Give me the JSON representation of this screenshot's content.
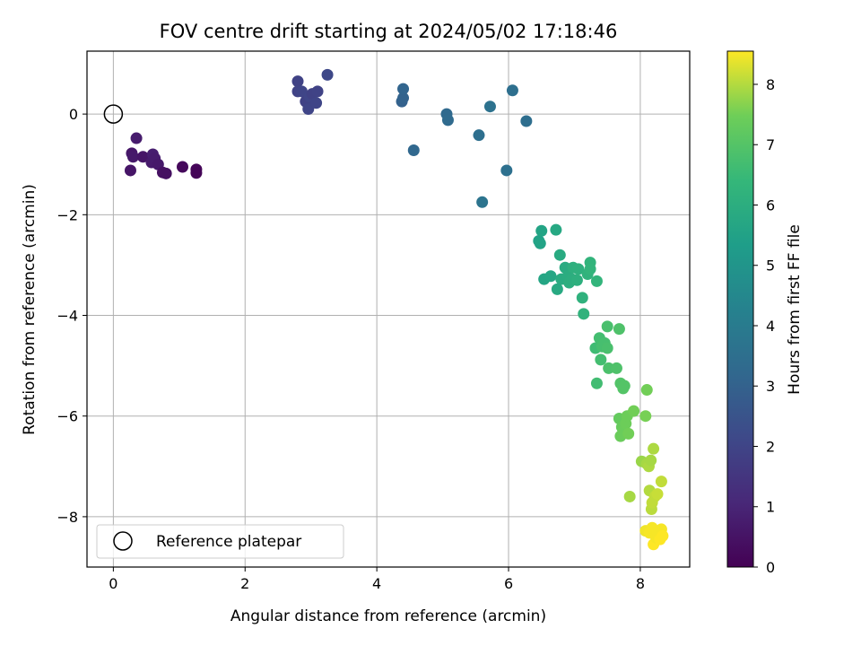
{
  "chart_data": {
    "type": "scatter",
    "title": "FOV centre drift starting at 2024/05/02 17:18:46",
    "xlabel": "Angular distance from reference (arcmin)",
    "ylabel": "Rotation from reference (arcmin)",
    "xlim": [
      -0.4,
      8.75
    ],
    "ylim": [
      -9.0,
      1.25
    ],
    "xticks": [
      0,
      2,
      4,
      6,
      8
    ],
    "yticks": [
      0,
      -2,
      -4,
      -6,
      -8
    ],
    "grid": true,
    "colormap": "viridis",
    "colorbar": {
      "label": "Hours from first FF file",
      "range": [
        0,
        8.55
      ],
      "ticks": [
        0,
        1,
        2,
        3,
        4,
        5,
        6,
        7,
        8
      ]
    },
    "legend": {
      "position": "lower-left",
      "entries": [
        "Reference platepar"
      ]
    },
    "reference_point": {
      "x": 0,
      "y": 0,
      "label": "Reference platepar"
    },
    "points": [
      {
        "x": 0.26,
        "y": -1.12,
        "c": 0.55
      },
      {
        "x": 0.28,
        "y": -0.78,
        "c": 0.6
      },
      {
        "x": 0.3,
        "y": -0.85,
        "c": 0.65
      },
      {
        "x": 0.35,
        "y": -0.48,
        "c": 0.75
      },
      {
        "x": 0.45,
        "y": -0.85,
        "c": 0.55
      },
      {
        "x": 0.58,
        "y": -0.96,
        "c": 0.7
      },
      {
        "x": 0.6,
        "y": -0.8,
        "c": 0.8
      },
      {
        "x": 0.63,
        "y": -0.88,
        "c": 0.75
      },
      {
        "x": 0.68,
        "y": -1.0,
        "c": 0.65
      },
      {
        "x": 0.75,
        "y": -1.16,
        "c": 0.45
      },
      {
        "x": 0.8,
        "y": -1.18,
        "c": 0.4
      },
      {
        "x": 1.05,
        "y": -1.05,
        "c": 0.2
      },
      {
        "x": 1.26,
        "y": -1.1,
        "c": 0.15
      },
      {
        "x": 1.26,
        "y": -1.17,
        "c": 0.1
      },
      {
        "x": 2.8,
        "y": 0.65,
        "c": 1.9
      },
      {
        "x": 2.8,
        "y": 0.45,
        "c": 1.95
      },
      {
        "x": 2.86,
        "y": 0.45,
        "c": 2.0
      },
      {
        "x": 2.92,
        "y": 0.25,
        "c": 1.9
      },
      {
        "x": 2.96,
        "y": 0.1,
        "c": 2.0
      },
      {
        "x": 2.98,
        "y": 0.35,
        "c": 2.05
      },
      {
        "x": 3.02,
        "y": 0.4,
        "c": 1.9
      },
      {
        "x": 3.08,
        "y": 0.22,
        "c": 2.0
      },
      {
        "x": 3.1,
        "y": 0.45,
        "c": 1.95
      },
      {
        "x": 3.25,
        "y": 0.78,
        "c": 2.1
      },
      {
        "x": 4.38,
        "y": 0.25,
        "c": 3.0
      },
      {
        "x": 4.4,
        "y": 0.32,
        "c": 3.05
      },
      {
        "x": 4.4,
        "y": 0.5,
        "c": 3.1
      },
      {
        "x": 4.56,
        "y": -0.72,
        "c": 3.2
      },
      {
        "x": 5.06,
        "y": 0.0,
        "c": 3.3
      },
      {
        "x": 5.08,
        "y": -0.12,
        "c": 3.35
      },
      {
        "x": 5.55,
        "y": -0.42,
        "c": 3.5
      },
      {
        "x": 5.6,
        "y": -1.75,
        "c": 3.7
      },
      {
        "x": 5.72,
        "y": 0.15,
        "c": 3.6
      },
      {
        "x": 5.97,
        "y": -1.12,
        "c": 3.55
      },
      {
        "x": 6.06,
        "y": 0.47,
        "c": 3.5
      },
      {
        "x": 6.27,
        "y": -0.14,
        "c": 3.45
      },
      {
        "x": 6.46,
        "y": -2.52,
        "c": 5.5
      },
      {
        "x": 6.48,
        "y": -2.57,
        "c": 5.55
      },
      {
        "x": 6.5,
        "y": -2.32,
        "c": 5.6
      },
      {
        "x": 6.54,
        "y": -3.28,
        "c": 5.65
      },
      {
        "x": 6.64,
        "y": -3.22,
        "c": 5.7
      },
      {
        "x": 6.72,
        "y": -2.3,
        "c": 5.75
      },
      {
        "x": 6.74,
        "y": -3.48,
        "c": 5.8
      },
      {
        "x": 6.78,
        "y": -2.8,
        "c": 5.85
      },
      {
        "x": 6.8,
        "y": -3.28,
        "c": 5.9
      },
      {
        "x": 6.86,
        "y": -3.05,
        "c": 5.9
      },
      {
        "x": 6.9,
        "y": -3.22,
        "c": 5.95
      },
      {
        "x": 6.92,
        "y": -3.35,
        "c": 6.0
      },
      {
        "x": 6.96,
        "y": -3.28,
        "c": 6.0
      },
      {
        "x": 6.98,
        "y": -3.05,
        "c": 6.05
      },
      {
        "x": 7.04,
        "y": -3.3,
        "c": 6.05
      },
      {
        "x": 7.06,
        "y": -3.08,
        "c": 6.1
      },
      {
        "x": 7.12,
        "y": -3.65,
        "c": 6.15
      },
      {
        "x": 7.14,
        "y": -3.97,
        "c": 6.2
      },
      {
        "x": 7.2,
        "y": -3.18,
        "c": 6.2
      },
      {
        "x": 7.24,
        "y": -2.95,
        "c": 6.25
      },
      {
        "x": 7.24,
        "y": -3.08,
        "c": 6.3
      },
      {
        "x": 7.34,
        "y": -3.32,
        "c": 6.3
      },
      {
        "x": 7.32,
        "y": -4.65,
        "c": 6.6
      },
      {
        "x": 7.34,
        "y": -5.35,
        "c": 6.65
      },
      {
        "x": 7.38,
        "y": -4.45,
        "c": 6.7
      },
      {
        "x": 7.4,
        "y": -4.88,
        "c": 6.7
      },
      {
        "x": 7.42,
        "y": -4.62,
        "c": 6.75
      },
      {
        "x": 7.46,
        "y": -4.55,
        "c": 6.75
      },
      {
        "x": 7.5,
        "y": -4.65,
        "c": 6.8
      },
      {
        "x": 7.5,
        "y": -4.22,
        "c": 6.8
      },
      {
        "x": 7.52,
        "y": -5.05,
        "c": 6.85
      },
      {
        "x": 7.64,
        "y": -5.05,
        "c": 6.9
      },
      {
        "x": 7.68,
        "y": -4.27,
        "c": 6.9
      },
      {
        "x": 7.7,
        "y": -5.35,
        "c": 6.95
      },
      {
        "x": 7.74,
        "y": -5.45,
        "c": 7.0
      },
      {
        "x": 7.76,
        "y": -5.4,
        "c": 7.0
      },
      {
        "x": 7.68,
        "y": -6.05,
        "c": 7.3
      },
      {
        "x": 7.72,
        "y": -6.22,
        "c": 7.35
      },
      {
        "x": 7.7,
        "y": -6.4,
        "c": 7.4
      },
      {
        "x": 7.74,
        "y": -6.3,
        "c": 7.4
      },
      {
        "x": 7.78,
        "y": -6.15,
        "c": 7.45
      },
      {
        "x": 7.8,
        "y": -6.0,
        "c": 7.45
      },
      {
        "x": 7.82,
        "y": -6.35,
        "c": 7.5
      },
      {
        "x": 7.9,
        "y": -5.9,
        "c": 7.5
      },
      {
        "x": 7.84,
        "y": -7.6,
        "c": 7.9
      },
      {
        "x": 8.02,
        "y": -6.9,
        "c": 7.8
      },
      {
        "x": 8.08,
        "y": -6.0,
        "c": 7.55
      },
      {
        "x": 8.1,
        "y": -5.48,
        "c": 7.5
      },
      {
        "x": 8.1,
        "y": -6.95,
        "c": 7.9
      },
      {
        "x": 8.13,
        "y": -7.0,
        "c": 7.95
      },
      {
        "x": 8.14,
        "y": -7.48,
        "c": 8.0
      },
      {
        "x": 8.16,
        "y": -6.88,
        "c": 7.9
      },
      {
        "x": 8.17,
        "y": -7.85,
        "c": 8.05
      },
      {
        "x": 8.18,
        "y": -7.72,
        "c": 8.1
      },
      {
        "x": 8.2,
        "y": -6.65,
        "c": 7.95
      },
      {
        "x": 8.22,
        "y": -7.6,
        "c": 8.1
      },
      {
        "x": 8.26,
        "y": -7.55,
        "c": 8.15
      },
      {
        "x": 8.32,
        "y": -7.3,
        "c": 8.1
      },
      {
        "x": 8.08,
        "y": -8.28,
        "c": 8.45
      },
      {
        "x": 8.14,
        "y": -8.32,
        "c": 8.5
      },
      {
        "x": 8.18,
        "y": -8.22,
        "c": 8.5
      },
      {
        "x": 8.2,
        "y": -8.55,
        "c": 8.55
      },
      {
        "x": 8.24,
        "y": -8.42,
        "c": 8.5
      },
      {
        "x": 8.26,
        "y": -8.3,
        "c": 8.5
      },
      {
        "x": 8.3,
        "y": -8.45,
        "c": 8.55
      },
      {
        "x": 8.32,
        "y": -8.25,
        "c": 8.5
      },
      {
        "x": 8.34,
        "y": -8.38,
        "c": 8.55
      }
    ]
  }
}
